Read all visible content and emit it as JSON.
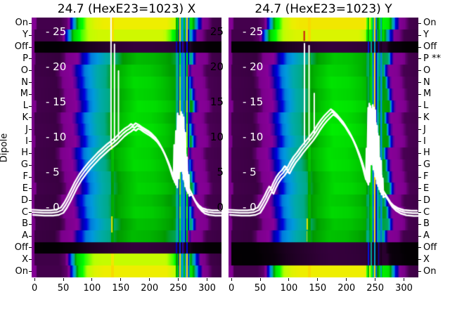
{
  "chart_data": {
    "type": "heatmap",
    "colormap": "nipy_spectral",
    "ylabel": "Dipole",
    "x_ticks": [
      0,
      50,
      100,
      150,
      200,
      250,
      300
    ],
    "x_range": [
      -5,
      325
    ],
    "y_range": [
      -10,
      27
    ],
    "row_labels_left": [
      "On",
      "Y",
      "Off",
      "P",
      "O",
      "N",
      "M",
      "L",
      "K",
      "J",
      "I",
      "H",
      "G",
      "F",
      "E",
      "D",
      "C",
      "B",
      "A",
      "Off",
      "X",
      "On"
    ],
    "row_labels_right": [
      "On",
      "Y",
      "Off",
      "P **",
      "O",
      "N",
      "M",
      "L",
      "K",
      "J",
      "I",
      "H",
      "G",
      "F",
      "E",
      "D",
      "C",
      "B",
      "A",
      "Off",
      "X",
      "On"
    ],
    "inner_tick_labels_left": [
      "- 25",
      "- 20",
      "- 15",
      "- 10",
      "- 5",
      "- 0"
    ],
    "inner_tick_labels_right": [
      "25",
      "20",
      "15",
      "10",
      "5",
      "0"
    ],
    "inner_tick_values": [
      25,
      20,
      15,
      10,
      5,
      0
    ],
    "curve_color": "#ffffff",
    "shapes": {
      "body": [
        [
          -5,
          0.13
        ],
        [
          -1,
          0.05
        ],
        [
          40,
          0.045
        ],
        [
          48,
          0.07
        ],
        [
          55,
          0.13
        ],
        [
          64,
          0.16
        ],
        [
          74,
          0.22
        ],
        [
          84,
          0.36
        ],
        [
          96,
          0.52
        ],
        [
          110,
          0.63
        ],
        [
          130,
          0.76
        ],
        [
          150,
          0.9
        ],
        [
          175,
          1.0
        ],
        [
          205,
          0.98
        ],
        [
          225,
          0.93
        ],
        [
          242,
          0.86
        ],
        [
          268,
          0.8
        ],
        [
          270,
          0.75
        ],
        [
          273,
          0.4
        ],
        [
          277,
          0.22
        ],
        [
          282,
          0.17
        ],
        [
          293,
          0.15
        ],
        [
          299,
          0.08
        ],
        [
          305,
          0.055
        ],
        [
          325,
          0.05
        ]
      ],
      "bright": [
        [
          -5,
          0.13
        ],
        [
          -1,
          0.04
        ],
        [
          40,
          0.04
        ],
        [
          52,
          0.06
        ],
        [
          58,
          0.22
        ],
        [
          64,
          0.45
        ],
        [
          72,
          0.8
        ],
        [
          85,
          0.92
        ],
        [
          100,
          0.98
        ],
        [
          115,
          1.0
        ],
        [
          225,
          1.0
        ],
        [
          240,
          0.93
        ],
        [
          248,
          0.85
        ],
        [
          268,
          0.8
        ],
        [
          274,
          0.55
        ],
        [
          280,
          0.28
        ],
        [
          288,
          0.12
        ],
        [
          296,
          0.07
        ],
        [
          304,
          0.04
        ],
        [
          325,
          0.035
        ]
      ]
    },
    "panels": [
      {
        "title": "24.7 (HexE23=1023) X",
        "row_levels": [
          0.7,
          0.67,
          0.022,
          0.5,
          0.53,
          0.55,
          0.54,
          0.56,
          0.55,
          0.565,
          0.55,
          0.545,
          0.55,
          0.53,
          0.54,
          0.52,
          0.535,
          0.51,
          0.5,
          0.022,
          0.66,
          0.7
        ],
        "stripes": {
          "x0": 243,
          "x1": 271,
          "colw": 2.3,
          "mult": [
            1,
            0.5,
            0.85,
            0.38,
            0.95,
            0.6,
            0.3,
            0.9,
            0.5,
            1,
            0.42,
            0.72
          ],
          "add": [
            0,
            0.16,
            0,
            0,
            0.2,
            0,
            0.13,
            0,
            0,
            0.18,
            0,
            0
          ]
        },
        "curve": [
          [
            -5,
            -0.7
          ],
          [
            15,
            -0.8
          ],
          [
            30,
            -0.8
          ],
          [
            40,
            -0.7
          ],
          [
            48,
            -0.4
          ],
          [
            54,
            0.3
          ],
          [
            60,
            1.2
          ],
          [
            66,
            2.2
          ],
          [
            72,
            3.2
          ],
          [
            80,
            4.3
          ],
          [
            88,
            5.2
          ],
          [
            96,
            6.0
          ],
          [
            104,
            6.7
          ],
          [
            112,
            7.4
          ],
          [
            120,
            8.0
          ],
          [
            128,
            8.6
          ],
          [
            136,
            9.1
          ],
          [
            142,
            9.5
          ],
          [
            148,
            10.0
          ],
          [
            154,
            10.5
          ],
          [
            160,
            10.9
          ],
          [
            166,
            11.2
          ],
          [
            170,
            11.5
          ],
          [
            174,
            11.3
          ],
          [
            178,
            11.6
          ],
          [
            183,
            11.4
          ],
          [
            188,
            11.1
          ],
          [
            194,
            10.8
          ],
          [
            200,
            10.5
          ],
          [
            206,
            10.1
          ],
          [
            212,
            9.6
          ],
          [
            218,
            8.9
          ],
          [
            224,
            8.0
          ],
          [
            230,
            6.9
          ],
          [
            236,
            5.6
          ],
          [
            241,
            4.3
          ],
          [
            244,
            3.6
          ],
          [
            245,
            8.5
          ],
          [
            246,
            3.2
          ],
          [
            248,
            10.5
          ],
          [
            249,
            4.5
          ],
          [
            251,
            13.0
          ],
          [
            252,
            5.5
          ],
          [
            254,
            12.6
          ],
          [
            255,
            6.0
          ],
          [
            257,
            13.2
          ],
          [
            258,
            4.8
          ],
          [
            260,
            11.0
          ],
          [
            261,
            3.6
          ],
          [
            263,
            7.5
          ],
          [
            264,
            2.6
          ],
          [
            266,
            5.0
          ],
          [
            267,
            2.0
          ],
          [
            271,
            2.3
          ],
          [
            276,
            1.4
          ],
          [
            282,
            0.5
          ],
          [
            288,
            -0.1
          ],
          [
            294,
            -0.5
          ],
          [
            302,
            -0.7
          ],
          [
            312,
            -0.8
          ],
          [
            325,
            -0.8
          ]
        ],
        "spikes": [
          [
            133,
            8.9,
            27
          ],
          [
            139,
            9.3,
            23.2
          ],
          [
            146,
            9.8,
            19.4
          ]
        ],
        "marks": [
          {
            "x": 134.5,
            "ya": -1.3,
            "yb": -3.6,
            "w": 2,
            "c": "#e3e300"
          },
          {
            "x": 134.2,
            "ya": 9.2,
            "yb": 8.2,
            "w": 2,
            "c": "#d9e000"
          }
        ]
      },
      {
        "title": "24.7 (HexE23=1023) Y",
        "row_levels": [
          0.71,
          0.68,
          0.022,
          0.52,
          0.54,
          0.56,
          0.55,
          0.57,
          0.56,
          0.575,
          0.56,
          0.555,
          0.56,
          0.54,
          0.55,
          0.53,
          0.545,
          0.52,
          0.51,
          0.022,
          0.022,
          0.7
        ],
        "stripes": {
          "x0": 235,
          "x1": 263,
          "colw": 2.2,
          "mult": [
            0.9,
            0.45,
            1,
            0.35,
            0.85,
            0.55,
            1,
            0.4,
            0.75,
            0.5,
            0.95,
            0.6
          ],
          "add": [
            0,
            0.2,
            0,
            0.38,
            0,
            0,
            0.3,
            0,
            0,
            0.17,
            0,
            0
          ]
        },
        "curve": [
          [
            -5,
            -0.7
          ],
          [
            15,
            -0.8
          ],
          [
            30,
            -0.8
          ],
          [
            40,
            -0.7
          ],
          [
            48,
            -0.4
          ],
          [
            54,
            0.4
          ],
          [
            60,
            1.3
          ],
          [
            64,
            2.0
          ],
          [
            68,
            2.6
          ],
          [
            71,
            2.3
          ],
          [
            75,
            3.1
          ],
          [
            80,
            3.9
          ],
          [
            85,
            4.5
          ],
          [
            90,
            4.9
          ],
          [
            95,
            5.5
          ],
          [
            99,
            5.2
          ],
          [
            104,
            6.0
          ],
          [
            110,
            6.8
          ],
          [
            116,
            7.4
          ],
          [
            122,
            8.1
          ],
          [
            128,
            8.7
          ],
          [
            134,
            9.3
          ],
          [
            140,
            9.9
          ],
          [
            146,
            10.6
          ],
          [
            152,
            11.4
          ],
          [
            158,
            12.1
          ],
          [
            164,
            12.7
          ],
          [
            170,
            13.2
          ],
          [
            175,
            13.6
          ],
          [
            180,
            13.3
          ],
          [
            185,
            12.9
          ],
          [
            190,
            12.4
          ],
          [
            196,
            11.8
          ],
          [
            202,
            11.0
          ],
          [
            208,
            10.2
          ],
          [
            214,
            9.2
          ],
          [
            220,
            8.0
          ],
          [
            226,
            6.6
          ],
          [
            231,
            5.2
          ],
          [
            234,
            4.2
          ],
          [
            236,
            3.6
          ],
          [
            237,
            8.0
          ],
          [
            238,
            4.0
          ],
          [
            240,
            13.8
          ],
          [
            241,
            6.5
          ],
          [
            242,
            14.4
          ],
          [
            243,
            8.0
          ],
          [
            245,
            13.6
          ],
          [
            246,
            6.0
          ],
          [
            248,
            14.2
          ],
          [
            249,
            5.0
          ],
          [
            251,
            12.0
          ],
          [
            252,
            4.0
          ],
          [
            254,
            10.5
          ],
          [
            255,
            3.0
          ],
          [
            258,
            7.0
          ],
          [
            259,
            2.2
          ],
          [
            261,
            4.5
          ],
          [
            262,
            1.8
          ],
          [
            266,
            2.0
          ],
          [
            272,
            1.2
          ],
          [
            278,
            0.4
          ],
          [
            284,
            -0.1
          ],
          [
            292,
            -0.5
          ],
          [
            302,
            -0.75
          ],
          [
            315,
            -0.85
          ],
          [
            325,
            -0.85
          ]
        ],
        "spikes": [
          [
            127,
            9.0,
            23.3
          ],
          [
            135,
            9.6,
            23.0
          ],
          [
            144,
            10.4,
            16.2
          ]
        ],
        "marks": [
          {
            "x": 131.8,
            "ya": -1.6,
            "yb": -3.2,
            "w": 2,
            "c": "#e3e300"
          },
          {
            "x": 131.4,
            "ya": -3.4,
            "yb": -4.9,
            "w": 1,
            "c": "#cddd00"
          },
          {
            "x": 126.6,
            "ya": 25.1,
            "yb": 23.7,
            "w": 2,
            "c": "#cc1111"
          }
        ]
      }
    ]
  }
}
